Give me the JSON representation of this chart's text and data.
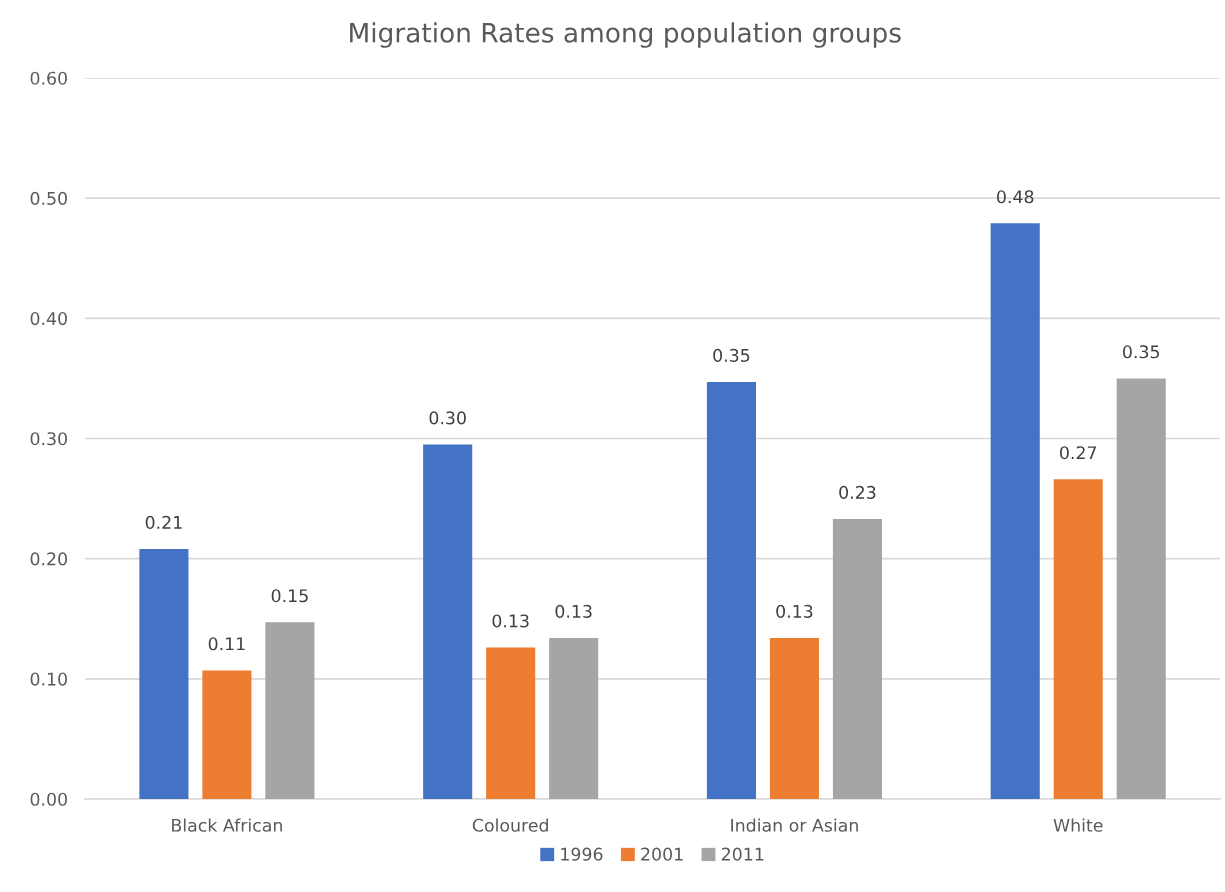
{
  "chart_data": {
    "type": "bar",
    "title": "Migration Rates among population groups",
    "categories": [
      "Black African",
      "Coloured",
      "Indian or Asian",
      "White"
    ],
    "series": [
      {
        "name": "1996",
        "color": "#4472c4",
        "values": [
          0.208,
          0.295,
          0.347,
          0.479
        ],
        "value_labels": [
          "0.21",
          "0.30",
          "0.35",
          "0.48"
        ]
      },
      {
        "name": "2001",
        "color": "#ed7d31",
        "values": [
          0.107,
          0.126,
          0.134,
          0.266
        ],
        "value_labels": [
          "0.11",
          "0.13",
          "0.13",
          "0.27"
        ]
      },
      {
        "name": "2011",
        "color": "#a5a5a5",
        "values": [
          0.147,
          0.134,
          0.233,
          0.35
        ],
        "value_labels": [
          "0.15",
          "0.13",
          "0.23",
          "0.35"
        ]
      }
    ],
    "ylim": [
      0,
      0.6
    ],
    "yticks": [
      {
        "value": 0,
        "label": "0.00"
      },
      {
        "value": 0.1,
        "label": "0.10"
      },
      {
        "value": 0.2,
        "label": "0.20"
      },
      {
        "value": 0.3,
        "label": "0.30"
      },
      {
        "value": 0.4,
        "label": "0.40"
      },
      {
        "value": 0.5,
        "label": "0.50"
      },
      {
        "value": 0.6,
        "label": "0.60"
      }
    ],
    "grid": "y",
    "legend": "bottom"
  }
}
